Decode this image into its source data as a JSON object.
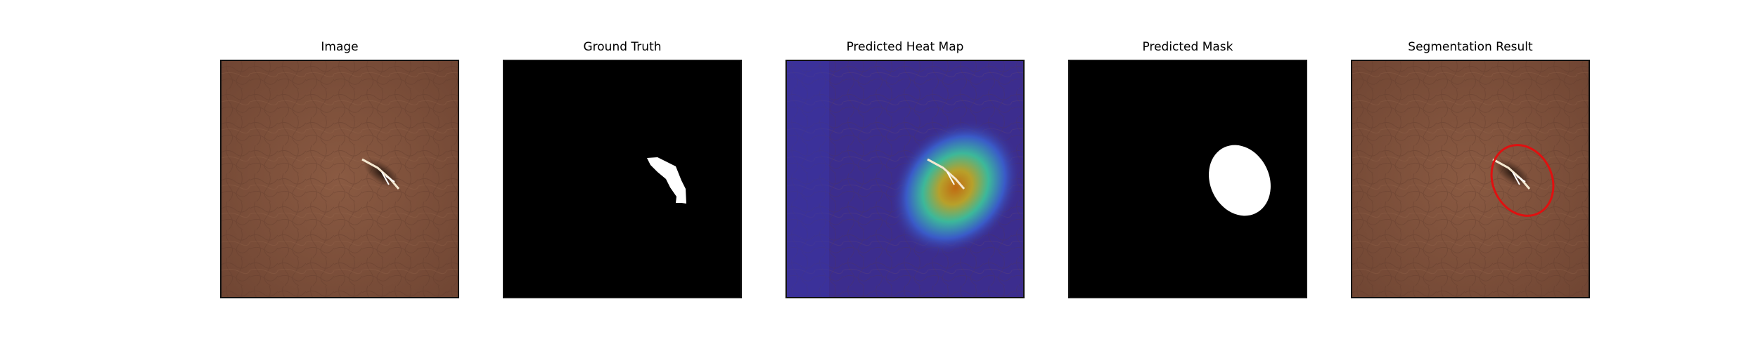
{
  "figure": {
    "panels": [
      {
        "title": "Image"
      },
      {
        "title": "Ground Truth"
      },
      {
        "title": "Predicted Heat Map"
      },
      {
        "title": "Predicted Mask"
      },
      {
        "title": "Segmentation Result"
      }
    ]
  },
  "colors": {
    "leather": "#7a4e38",
    "mask_fg": "#ffffff",
    "mask_bg": "#000000",
    "heat_low": "#3a2a8c",
    "heat_high": "#c9781a",
    "contour": "#e01010"
  }
}
